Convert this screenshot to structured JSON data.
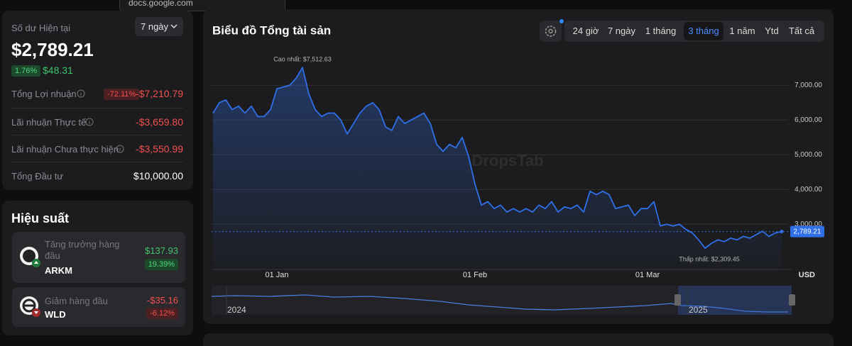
{
  "tooltip": "docs.google.com",
  "balance": {
    "label": "Số dư Hiện tại",
    "period": "7 ngày",
    "amount": "$2,789.21",
    "change_pct": "1.76%",
    "change_abs": "$48.31",
    "rows": [
      {
        "label": "Tổng Lợi nhuận",
        "badge": "-72.11%",
        "value": "-$7,210.79"
      },
      {
        "label": "Lãi nhuận Thực tế",
        "value": "-$3,659.80"
      },
      {
        "label": "Lãi nhuận Chưa thực hiện",
        "value": "-$3,550.99"
      },
      {
        "label": "Tổng Đầu tư",
        "value": "$10,000.00"
      }
    ]
  },
  "performance": {
    "title": "Hiệu suất",
    "cards": [
      {
        "label": "Tăng trưởng hàng đầu",
        "symbol": "ARKM",
        "value": "$137.93",
        "pct": "19.39%"
      },
      {
        "label": "Giảm hàng đầu",
        "symbol": "WLD",
        "value": "-$35.16",
        "pct": "-6.12%"
      }
    ]
  },
  "chart_data": {
    "type": "line",
    "title": "Biểu đồ Tổng tài sản",
    "range_options": [
      {
        "label": "24 giờ"
      },
      {
        "label": "7 ngày"
      },
      {
        "label": "1 tháng"
      },
      {
        "label": "3 tháng",
        "active": true
      },
      {
        "label": "1 năm"
      },
      {
        "label": "Ytd"
      },
      {
        "label": "Tất cả"
      }
    ],
    "watermark": "DropsTab",
    "unit": "USD",
    "color": "#2f6fe8",
    "peak_label": "Cao nhất: $7,512.63",
    "trough_label": "Thấp nhất: $2,309.45",
    "current_label": "2,789.21",
    "navigator_labels": [
      "2024",
      "2025"
    ],
    "categories": [
      null,
      null,
      null,
      null,
      null,
      null,
      null,
      null,
      null,
      null,
      "01 Jan",
      null,
      null,
      null,
      null,
      null,
      null,
      null,
      null,
      null,
      null,
      null,
      null,
      null,
      null,
      null,
      null,
      null,
      null,
      null,
      null,
      null,
      null,
      null,
      null,
      null,
      null,
      null,
      null,
      null,
      null,
      "01 Feb",
      null,
      null,
      null,
      null,
      null,
      null,
      null,
      null,
      null,
      null,
      null,
      null,
      null,
      null,
      null,
      null,
      null,
      null,
      null,
      null,
      null,
      null,
      null,
      null,
      null,
      null,
      "01 Mar",
      null,
      null,
      null,
      null,
      null,
      null,
      null,
      null,
      null,
      null,
      null,
      null,
      null,
      null,
      null,
      null,
      null,
      null,
      null,
      null,
      null
    ],
    "values": [
      6200,
      6500,
      6580,
      6300,
      6400,
      6200,
      6400,
      6100,
      6100,
      6300,
      6900,
      6950,
      7000,
      7200,
      7512.63,
      6750,
      6300,
      6100,
      6200,
      6200,
      6000,
      5600,
      5900,
      6200,
      6400,
      6500,
      6300,
      5800,
      5700,
      6100,
      5900,
      6000,
      6100,
      6200,
      5900,
      5300,
      5100,
      5300,
      5200,
      5500,
      4950,
      4150,
      3550,
      3650,
      3450,
      3550,
      3350,
      3450,
      3350,
      3450,
      3350,
      3550,
      3450,
      3650,
      3350,
      3500,
      3450,
      3550,
      3350,
      3950,
      3850,
      3950,
      3850,
      3450,
      3500,
      3550,
      3250,
      3450,
      3450,
      3650,
      2950,
      3000,
      2950,
      3000,
      2850,
      2750,
      2550,
      2309.45,
      2450,
      2550,
      2500,
      2600,
      2550,
      2650,
      2600,
      2700,
      2800,
      2650,
      2750,
      2789.21
    ],
    "ylim": [
      1700,
      7720
    ],
    "yticks": [
      {
        "value": 3000,
        "label": "3,000.00"
      },
      {
        "value": 4000,
        "label": "4,000.00"
      },
      {
        "value": 5000,
        "label": "5,000.00"
      },
      {
        "value": 6000,
        "label": "6,000.00"
      },
      {
        "value": 7000,
        "label": "7,000.00"
      }
    ],
    "grid": true
  }
}
